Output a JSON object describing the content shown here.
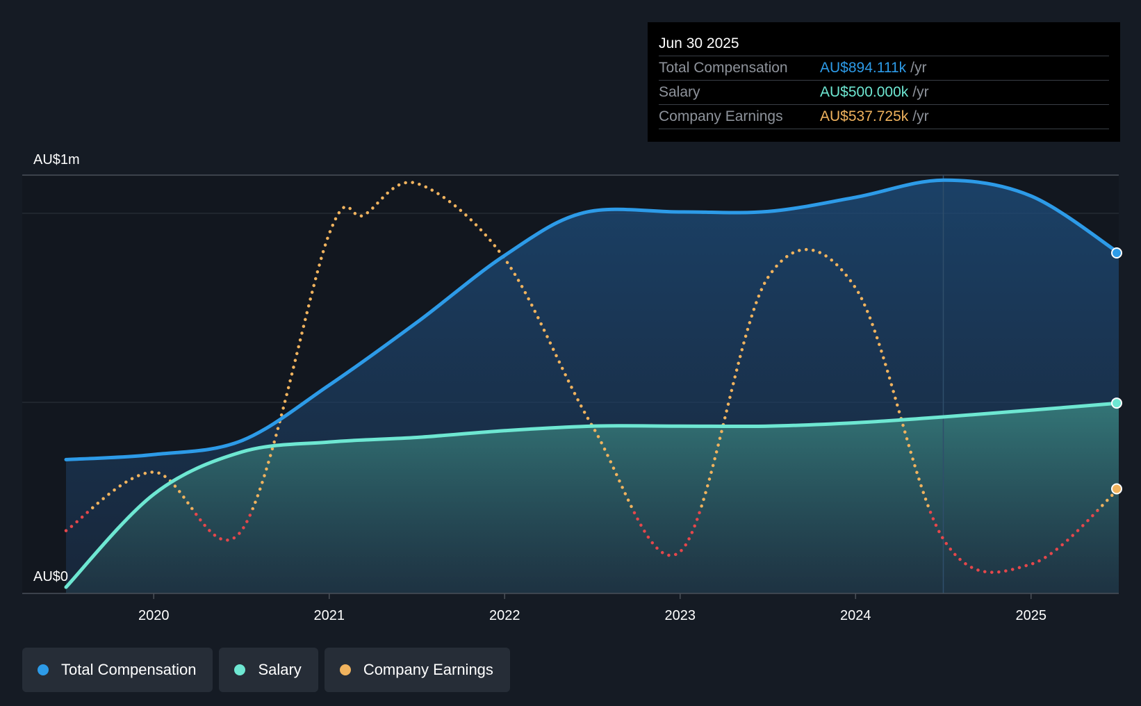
{
  "tooltip": {
    "date": "Jun 30 2025",
    "rows": [
      {
        "label": "Total Compensation",
        "value": "AU$894.111k",
        "unit": "/yr",
        "color": "#2d9be8"
      },
      {
        "label": "Salary",
        "value": "AU$500.000k",
        "unit": "/yr",
        "color": "#6ee7d2"
      },
      {
        "label": "Company Earnings",
        "value": "AU$537.725k",
        "unit": "/yr",
        "color": "#f0b35e"
      }
    ]
  },
  "legend": [
    {
      "label": "Total Compensation",
      "color": "#2d9be8"
    },
    {
      "label": "Salary",
      "color": "#6ee7d2"
    },
    {
      "label": "Company Earnings",
      "color": "#f0b35e"
    }
  ],
  "chart_data": {
    "type": "line",
    "title": "",
    "xlabel": "",
    "ylabel": "",
    "y_tick_labels": [
      "AU$0",
      "AU$1m"
    ],
    "ylim": [
      0,
      1000
    ],
    "xlim": [
      2019.5,
      2025.5
    ],
    "x_tick_labels": [
      "2020",
      "2021",
      "2022",
      "2023",
      "2024",
      "2025"
    ],
    "x_ticks": [
      2020,
      2021,
      2022,
      2023,
      2024,
      2025
    ],
    "series": [
      {
        "name": "Total Compensation",
        "color": "#2d9be8",
        "x": [
          2019.5,
          2020.0,
          2020.5,
          2021.0,
          2021.5,
          2022.0,
          2022.45,
          2023.0,
          2023.5,
          2024.0,
          2024.5,
          2025.0,
          2025.5
        ],
        "values": [
          320,
          332,
          365,
          498,
          648,
          808,
          910,
          912,
          913,
          947,
          988,
          950,
          814
        ]
      },
      {
        "name": "Salary",
        "color": "#6ee7d2",
        "x": [
          2019.5,
          2020.0,
          2020.5,
          2021.0,
          2021.5,
          2022.0,
          2022.5,
          2023.0,
          2023.5,
          2024.0,
          2024.5,
          2025.0,
          2025.5
        ],
        "values": [
          15,
          237,
          338,
          362,
          373,
          389,
          400,
          400,
          400,
          408,
          422,
          438,
          455
        ]
      },
      {
        "name": "Company Earnings",
        "color": "#f0b35e",
        "negative_color": "#e5474b",
        "x": [
          2019.5,
          2020.0,
          2020.5,
          2021.0,
          2021.2,
          2021.5,
          2022.0,
          2022.5,
          2023.0,
          2023.5,
          2024.0,
          2024.5,
          2025.0,
          2025.5
        ],
        "values": [
          150,
          290,
          150,
          860,
          905,
          980,
          800,
          400,
          100,
          755,
          730,
          130,
          70,
          250
        ]
      }
    ],
    "highlight_x": 2024.5
  }
}
